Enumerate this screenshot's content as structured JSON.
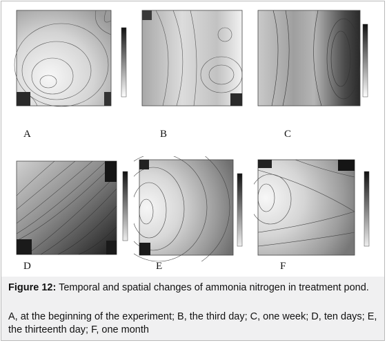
{
  "figure": {
    "panels": [
      {
        "id": "A",
        "label": "A",
        "gradient": [
          "#f7f7f7",
          "#cfcfcf",
          "#9b9b9b"
        ],
        "dark": "#222222"
      },
      {
        "id": "B",
        "label": "B",
        "gradient": [
          "#eeeeee",
          "#c4c4c4",
          "#9a9a9a"
        ],
        "dark": "#222222"
      },
      {
        "id": "C",
        "label": "C",
        "gradient": [
          "#d9d9d9",
          "#9d9d9d",
          "#3c3c3c"
        ],
        "dark": "#1e1e1e"
      },
      {
        "id": "D",
        "label": "D",
        "gradient": [
          "#bdbdbd",
          "#6d6d6d",
          "#1f1f1f"
        ],
        "dark": "#151515"
      },
      {
        "id": "E",
        "label": "E",
        "gradient": [
          "#f6f6f6",
          "#bdbdbd",
          "#6f6f6f"
        ],
        "dark": "#1a1a1a"
      },
      {
        "id": "F",
        "label": "F",
        "gradient": [
          "#f7f7f7",
          "#c9c9c9",
          "#777777"
        ],
        "dark": "#1a1a1a"
      }
    ],
    "caption_title_prefix": "Figure 12:",
    "caption_title_text": " Temporal and spatial changes of ammonia nitrogen in treatment pond.",
    "caption_description": "A, at the beginning of the experiment; B, the third day; C, one week; D, ten days; E, the thirteenth day; F, one month"
  }
}
